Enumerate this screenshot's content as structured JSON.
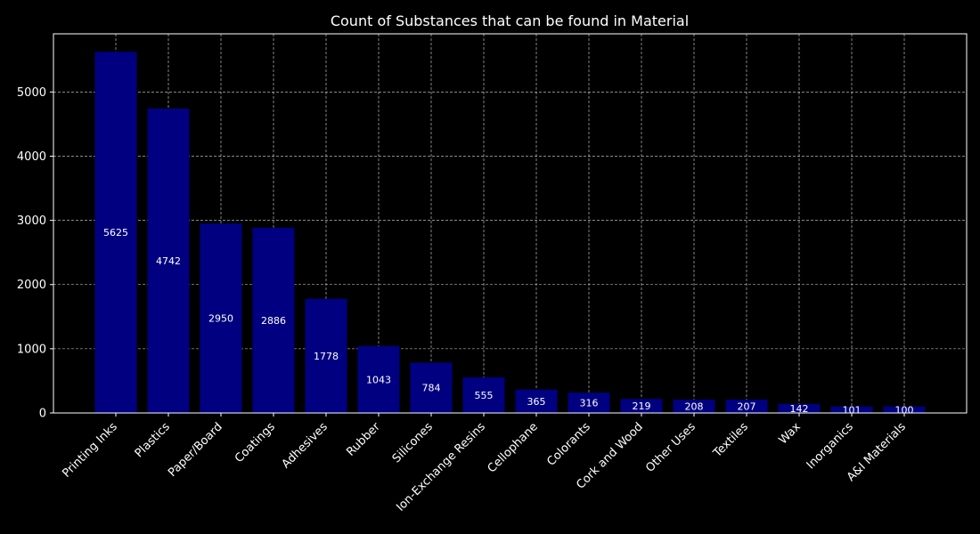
{
  "chart_data": {
    "type": "bar",
    "title": "Count of Substances that can be found in Material",
    "xlabel": "",
    "ylabel": "",
    "categories": [
      "Printing Inks",
      "Plastics",
      "Paper/Board",
      "Coatings",
      "Adhesives",
      "Rubber",
      "Silicones",
      "Ion-Exchange Resins",
      "Cellophane",
      "Colorants",
      "Cork and Wood",
      "Other Uses",
      "Textiles",
      "Wax",
      "Inorganics",
      "A&I Materials"
    ],
    "values": [
      5625,
      4742,
      2950,
      2886,
      1778,
      1043,
      784,
      555,
      365,
      316,
      219,
      208,
      207,
      142,
      101,
      100
    ],
    "ylim": [
      0,
      5906
    ],
    "yticks": [
      0,
      1000,
      2000,
      3000,
      4000,
      5000
    ],
    "grid": true,
    "bar_color": "#000080",
    "background_color": "#000000",
    "text_color": "#ffffff"
  }
}
